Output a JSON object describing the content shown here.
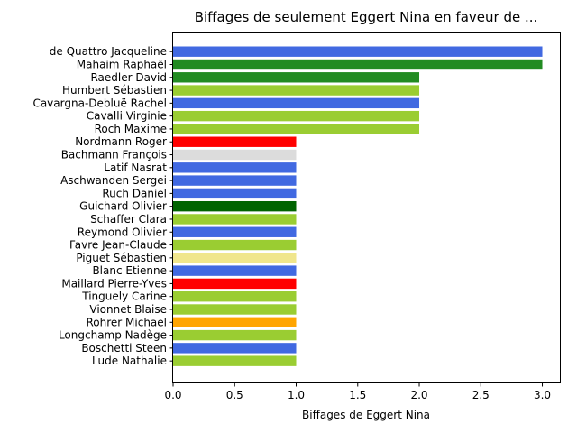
{
  "chart_data": {
    "type": "bar",
    "orientation": "horizontal",
    "title": "Biffages de seulement Eggert Nina en faveur de ...",
    "xlabel": "Biffages de Eggert Nina",
    "ylabel": "",
    "xlim": [
      0,
      3.15
    ],
    "xticks": [
      "0.0",
      "0.5",
      "1.0",
      "1.5",
      "2.0",
      "2.5",
      "3.0"
    ],
    "grid": false,
    "bars": [
      {
        "label": "de Quattro Jacqueline",
        "value": 3,
        "color": "#4169e1"
      },
      {
        "label": "Mahaim Raphaël",
        "value": 3,
        "color": "#228b22"
      },
      {
        "label": "Raedler David",
        "value": 2,
        "color": "#228b22"
      },
      {
        "label": "Humbert Sébastien",
        "value": 2,
        "color": "#9acd32"
      },
      {
        "label": "Cavargna-Debluë Rachel",
        "value": 2,
        "color": "#4169e1"
      },
      {
        "label": "Cavalli Virginie",
        "value": 2,
        "color": "#9acd32"
      },
      {
        "label": "Roch Maxime",
        "value": 2,
        "color": "#9acd32"
      },
      {
        "label": "Nordmann Roger",
        "value": 1,
        "color": "#ff0000"
      },
      {
        "label": "Bachmann François",
        "value": 1,
        "color": "#dcdcdc"
      },
      {
        "label": "Latif Nasrat",
        "value": 1,
        "color": "#4169e1"
      },
      {
        "label": "Aschwanden Sergei",
        "value": 1,
        "color": "#4169e1"
      },
      {
        "label": "Ruch Daniel",
        "value": 1,
        "color": "#4169e1"
      },
      {
        "label": "Guichard Olivier",
        "value": 1,
        "color": "#006400"
      },
      {
        "label": "Schaffer Clara",
        "value": 1,
        "color": "#9acd32"
      },
      {
        "label": "Reymond Olivier",
        "value": 1,
        "color": "#4169e1"
      },
      {
        "label": "Favre Jean-Claude",
        "value": 1,
        "color": "#9acd32"
      },
      {
        "label": "Piguet Sébastien",
        "value": 1,
        "color": "#f0e68c"
      },
      {
        "label": "Blanc Etienne",
        "value": 1,
        "color": "#4169e1"
      },
      {
        "label": "Maillard Pierre-Yves",
        "value": 1,
        "color": "#ff0000"
      },
      {
        "label": "Tinguely Carine",
        "value": 1,
        "color": "#9acd32"
      },
      {
        "label": "Vionnet Blaise",
        "value": 1,
        "color": "#9acd32"
      },
      {
        "label": "Rohrer Michael",
        "value": 1,
        "color": "#ffa500"
      },
      {
        "label": "Longchamp Nadège",
        "value": 1,
        "color": "#9acd32"
      },
      {
        "label": "Boschetti Steen",
        "value": 1,
        "color": "#4169e1"
      },
      {
        "label": "Lude Nathalie",
        "value": 1,
        "color": "#9acd32"
      }
    ]
  }
}
